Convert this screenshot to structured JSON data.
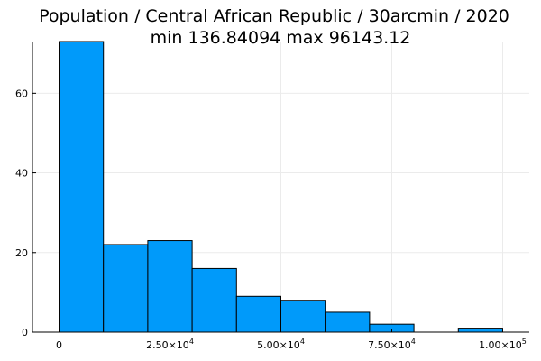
{
  "chart_data": {
    "type": "bar",
    "title": "Population / Central African Republic / 30arcmin / 2020",
    "subtitle": "min 136.84094  max 96143.12",
    "xlabel": "",
    "ylabel": "",
    "bin_edges": [
      0,
      10000,
      20000,
      30000,
      40000,
      50000,
      60000,
      70000,
      80000,
      90000,
      100000
    ],
    "values": [
      73,
      22,
      23,
      16,
      9,
      8,
      5,
      2,
      0,
      1
    ],
    "xlim": [
      -6000,
      106000
    ],
    "ylim": [
      0,
      73
    ],
    "x_ticks": [
      {
        "value": 0,
        "mantissa": "0",
        "exp": ""
      },
      {
        "value": 25000,
        "mantissa": "2.50×10",
        "exp": "4"
      },
      {
        "value": 50000,
        "mantissa": "5.00×10",
        "exp": "4"
      },
      {
        "value": 75000,
        "mantissa": "7.50×10",
        "exp": "4"
      },
      {
        "value": 100000,
        "mantissa": "1.00×10",
        "exp": "5"
      }
    ],
    "y_ticks": [
      0,
      20,
      40,
      60
    ],
    "grid": true,
    "legend": "none",
    "colors": {
      "bar_fill": "#009AFA",
      "bar_stroke": "#000000",
      "grid": "#EBEBEB",
      "axis": "#000000"
    }
  }
}
